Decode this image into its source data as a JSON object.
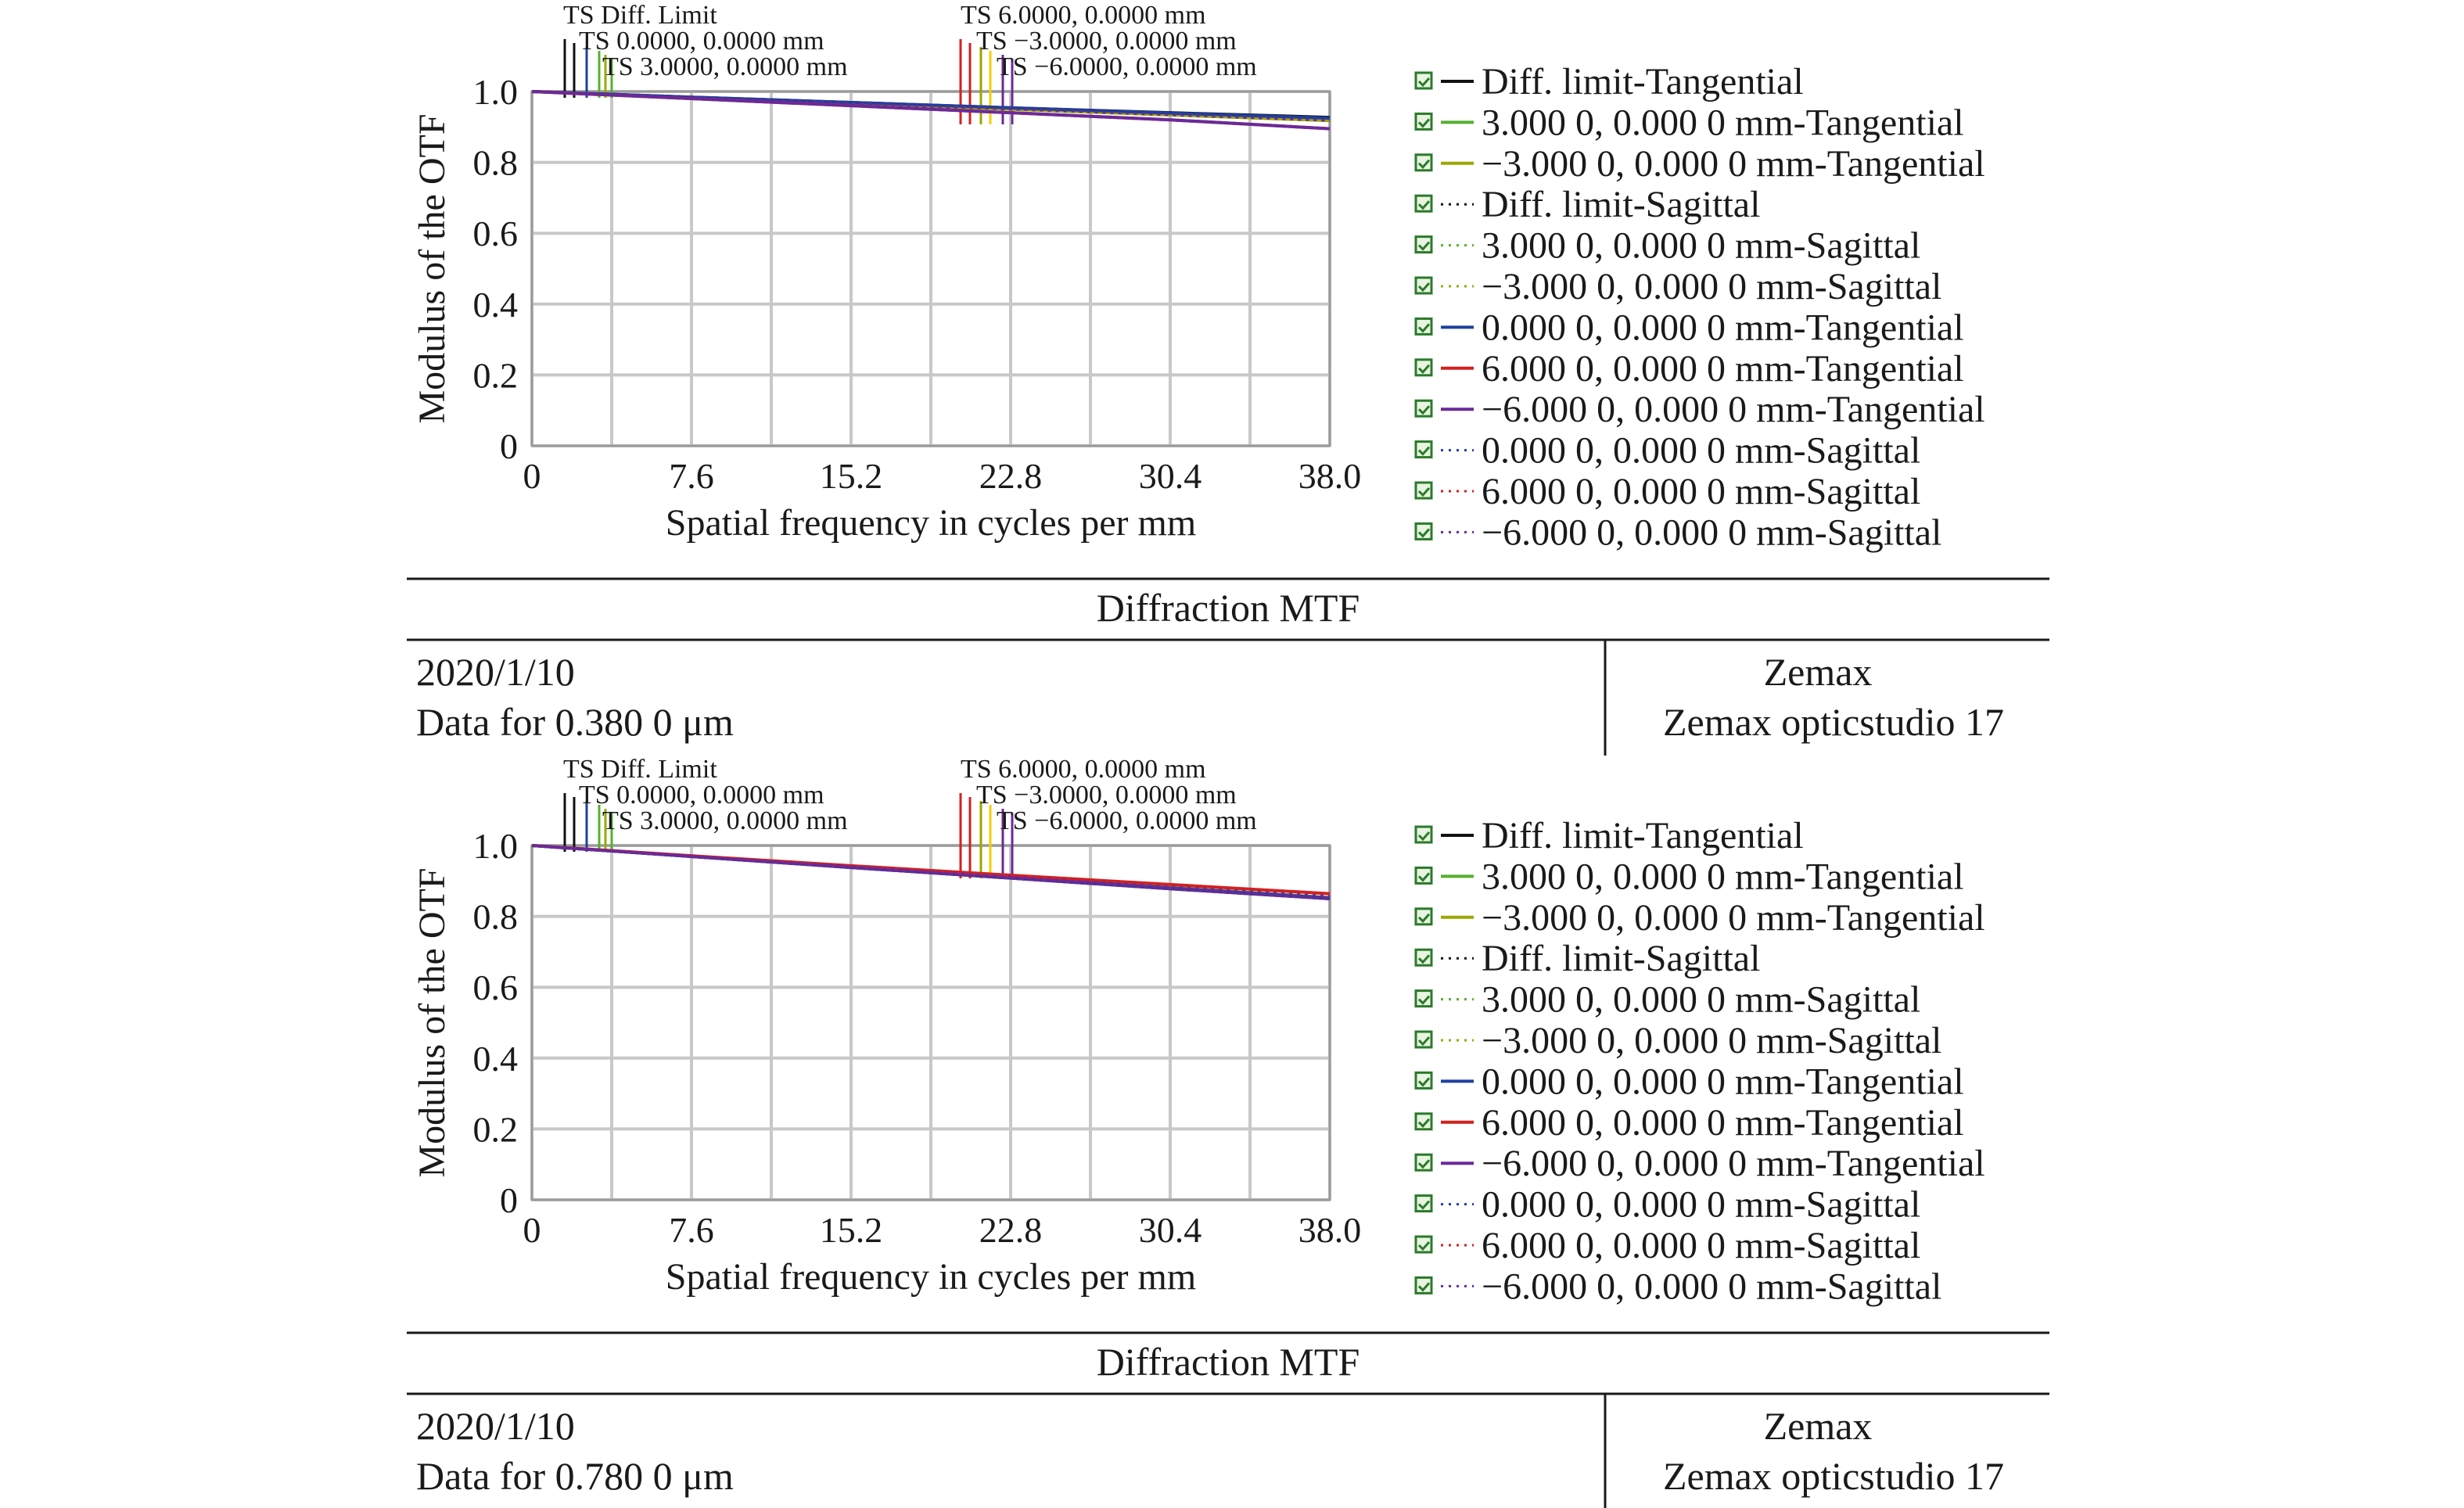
{
  "panels": [
    {
      "caption": "Diffraction MTF",
      "footer": {
        "date": "2020/1/10",
        "data_line": "Data for 0.380 0 μm",
        "company": "Zemax",
        "software": "Zemax opticstudio 17"
      },
      "chart_data": {
        "type": "line",
        "xlabel": "Spatial frequency in cycles per mm",
        "ylabel": "Modulus of the OTF",
        "xlim": [
          0,
          38.0
        ],
        "ylim": [
          0,
          1.0
        ],
        "x_ticks": [
          "0",
          "7.6",
          "15.2",
          "22.8",
          "30.4",
          "38.0"
        ],
        "y_ticks": [
          "0",
          "0.2",
          "0.4",
          "0.6",
          "0.8",
          "1.0"
        ],
        "grid": true,
        "legend_position": "right",
        "field_annotations": [
          "TS Diff. Limit",
          "TS 0.0000, 0.0000 mm",
          "TS 3.0000, 0.0000 mm",
          "TS 6.0000, 0.0000 mm",
          "TS −3.0000, 0.0000 mm",
          "TS −6.0000, 0.0000 mm"
        ],
        "x": [
          0,
          7.6,
          15.2,
          22.8,
          30.4,
          38.0
        ],
        "series": [
          {
            "name": "Diff. limit-Tangential",
            "color": "#111111",
            "dash": "solid",
            "values": [
              1.0,
              0.984,
              0.969,
              0.954,
              0.94,
              0.927
            ]
          },
          {
            "name": "3.000 0, 0.000 0 mm-Tangential",
            "color": "#55b030",
            "dash": "solid",
            "values": [
              1.0,
              0.983,
              0.966,
              0.95,
              0.934,
              0.918
            ]
          },
          {
            "name": "−3.000 0, 0.000 0 mm-Tangential",
            "color": "#9aa800",
            "dash": "solid",
            "values": [
              1.0,
              0.983,
              0.966,
              0.95,
              0.934,
              0.918
            ]
          },
          {
            "name": "Diff. limit-Sagittal",
            "color": "#111111",
            "dash": "dotted",
            "values": [
              1.0,
              0.984,
              0.969,
              0.954,
              0.94,
              0.927
            ]
          },
          {
            "name": "3.000 0, 0.000 0 mm-Sagittal",
            "color": "#55b030",
            "dash": "dotted",
            "values": [
              1.0,
              0.984,
              0.968,
              0.953,
              0.938,
              0.924
            ]
          },
          {
            "name": "−3.000 0, 0.000 0 mm-Sagittal",
            "color": "#9aa800",
            "dash": "dotted",
            "values": [
              1.0,
              0.984,
              0.968,
              0.953,
              0.938,
              0.924
            ]
          },
          {
            "name": "0.000 0, 0.000 0 mm-Tangential",
            "color": "#1f3f9f",
            "dash": "solid",
            "values": [
              1.0,
              0.984,
              0.969,
              0.954,
              0.939,
              0.925
            ]
          },
          {
            "name": "6.000 0, 0.000 0 mm-Tangential",
            "color": "#d42020",
            "dash": "solid",
            "values": [
              1.0,
              0.98,
              0.96,
              0.94,
              0.92,
              0.895
            ]
          },
          {
            "name": "−6.000 0, 0.000 0 mm-Tangential",
            "color": "#6a2a9a",
            "dash": "solid",
            "values": [
              1.0,
              0.98,
              0.96,
              0.94,
              0.92,
              0.895
            ]
          },
          {
            "name": "0.000 0, 0.000 0 mm-Sagittal",
            "color": "#1f3f9f",
            "dash": "dotted",
            "values": [
              1.0,
              0.984,
              0.969,
              0.954,
              0.939,
              0.925
            ]
          },
          {
            "name": "6.000 0, 0.000 0 mm-Sagittal",
            "color": "#d42020",
            "dash": "dotted",
            "values": [
              1.0,
              0.983,
              0.966,
              0.95,
              0.934,
              0.918
            ]
          },
          {
            "name": "−6.000 0, 0.000 0 mm-Sagittal",
            "color": "#6a2a9a",
            "dash": "dotted",
            "values": [
              1.0,
              0.983,
              0.966,
              0.95,
              0.934,
              0.918
            ]
          }
        ]
      }
    },
    {
      "caption": "Diffraction MTF",
      "footer": {
        "date": "2020/1/10",
        "data_line": "Data for 0.780 0 μm",
        "company": "Zemax",
        "software": "Zemax opticstudio 17"
      },
      "chart_data": {
        "type": "line",
        "xlabel": "Spatial frequency in cycles per mm",
        "ylabel": "Modulus of the OTF",
        "xlim": [
          0,
          38.0
        ],
        "ylim": [
          0,
          1.0
        ],
        "x_ticks": [
          "0",
          "7.6",
          "15.2",
          "22.8",
          "30.4",
          "38.0"
        ],
        "y_ticks": [
          "0",
          "0.2",
          "0.4",
          "0.6",
          "0.8",
          "1.0"
        ],
        "grid": true,
        "legend_position": "right",
        "field_annotations": [
          "TS Diff. Limit",
          "TS 0.0000, 0.0000 mm",
          "TS 3.0000, 0.0000 mm",
          "TS 6.0000, 0.0000 mm",
          "TS −3.0000, 0.0000 mm",
          "TS −6.0000, 0.0000 mm"
        ],
        "x": [
          0,
          7.6,
          15.2,
          22.8,
          30.4,
          38.0
        ],
        "series": [
          {
            "name": "Diff. limit-Tangential",
            "color": "#111111",
            "dash": "solid",
            "values": [
              1.0,
              0.969,
              0.938,
              0.908,
              0.878,
              0.85
            ]
          },
          {
            "name": "3.000 0, 0.000 0 mm-Tangential",
            "color": "#55b030",
            "dash": "solid",
            "values": [
              1.0,
              0.97,
              0.94,
              0.91,
              0.881,
              0.853
            ]
          },
          {
            "name": "−3.000 0, 0.000 0 mm-Tangential",
            "color": "#9aa800",
            "dash": "solid",
            "values": [
              1.0,
              0.97,
              0.94,
              0.91,
              0.881,
              0.853
            ]
          },
          {
            "name": "Diff. limit-Sagittal",
            "color": "#111111",
            "dash": "dotted",
            "values": [
              1.0,
              0.969,
              0.938,
              0.908,
              0.878,
              0.85
            ]
          },
          {
            "name": "3.000 0, 0.000 0 mm-Sagittal",
            "color": "#55b030",
            "dash": "dotted",
            "values": [
              1.0,
              0.97,
              0.941,
              0.912,
              0.884,
              0.857
            ]
          },
          {
            "name": "−3.000 0, 0.000 0 mm-Sagittal",
            "color": "#9aa800",
            "dash": "dotted",
            "values": [
              1.0,
              0.97,
              0.941,
              0.912,
              0.884,
              0.857
            ]
          },
          {
            "name": "0.000 0, 0.000 0 mm-Tangential",
            "color": "#1f3f9f",
            "dash": "solid",
            "values": [
              1.0,
              0.969,
              0.939,
              0.909,
              0.88,
              0.852
            ]
          },
          {
            "name": "6.000 0, 0.000 0 mm-Tangential",
            "color": "#d42020",
            "dash": "solid",
            "values": [
              1.0,
              0.971,
              0.943,
              0.916,
              0.89,
              0.864
            ]
          },
          {
            "name": "−6.000 0, 0.000 0 mm-Tangential",
            "color": "#6a2a9a",
            "dash": "solid",
            "values": [
              1.0,
              0.969,
              0.938,
              0.908,
              0.878,
              0.85
            ]
          },
          {
            "name": "0.000 0, 0.000 0 mm-Sagittal",
            "color": "#1f3f9f",
            "dash": "dotted",
            "values": [
              1.0,
              0.969,
              0.939,
              0.909,
              0.88,
              0.852
            ]
          },
          {
            "name": "6.000 0, 0.000 0 mm-Sagittal",
            "color": "#d42020",
            "dash": "dotted",
            "values": [
              1.0,
              0.97,
              0.941,
              0.912,
              0.884,
              0.857
            ]
          },
          {
            "name": "−6.000 0, 0.000 0 mm-Sagittal",
            "color": "#6a2a9a",
            "dash": "dotted",
            "values": [
              1.0,
              0.97,
              0.941,
              0.912,
              0.884,
              0.857
            ]
          }
        ]
      }
    }
  ]
}
